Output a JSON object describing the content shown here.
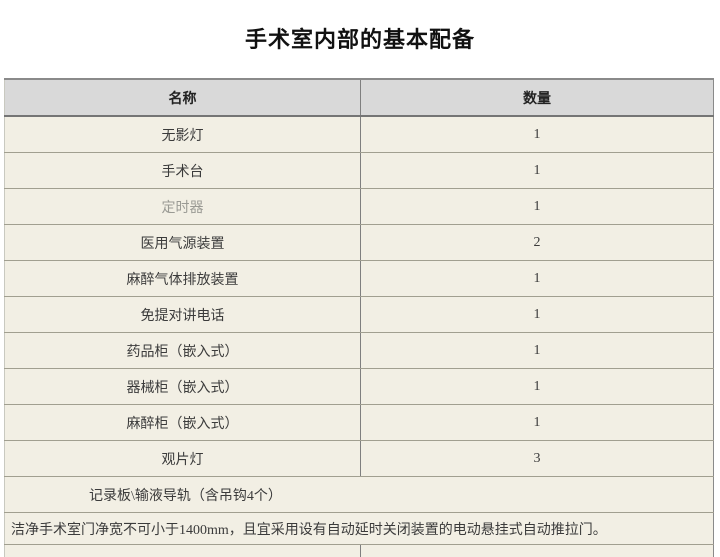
{
  "title": "手术室内部的基本配备",
  "table": {
    "headers": {
      "name": "名称",
      "qty": "数量"
    },
    "rows": [
      {
        "name": "无影灯",
        "qty": "1"
      },
      {
        "name": "手术台",
        "qty": "1"
      },
      {
        "name": "定时器",
        "qty": "1"
      },
      {
        "name": "医用气源装置",
        "qty": "2"
      },
      {
        "name": "麻醉气体排放装置",
        "qty": "1"
      },
      {
        "name": "免提对讲电话",
        "qty": "1"
      },
      {
        "name": "药品柜（嵌入式）",
        "qty": "1"
      },
      {
        "name": "器械柜（嵌入式）",
        "qty": "1"
      },
      {
        "name": "麻醉柜（嵌入式）",
        "qty": "1"
      },
      {
        "name": "观片灯",
        "qty": "3"
      }
    ],
    "rail_row": "记录板\\输液导轨（含吊钩4个）",
    "note_row": "洁净手术室门净宽不可小于1400mm，且宜采用设有自动延时关闭装置的电动悬挂式自动推拉门。"
  },
  "colors": {
    "header_bg": "#d9d9d9",
    "row_bg": "#f2efe4",
    "border_horizontal": "#a19f90",
    "border_divider": "#7f7f7f",
    "text_normal": "#3b3b3b",
    "text_muted": "#9a9a94",
    "title_text": "#111111"
  }
}
